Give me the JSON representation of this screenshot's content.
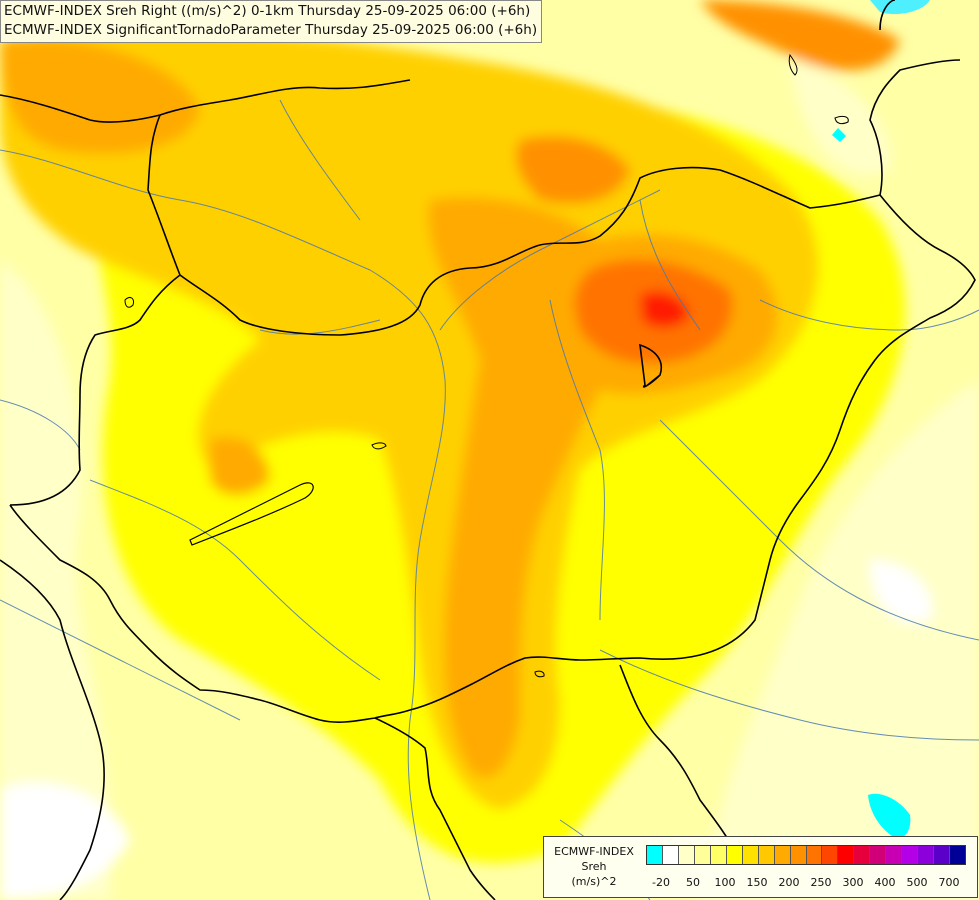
{
  "title_lines": [
    "ECMWF-INDEX Sreh Right ((m/s)^2) 0-1km Thursday 25-09-2025 06:00 (+6h)",
    "ECMWF-INDEX SignificantTornadoParameter Thursday 25-09-2025 06:00 (+6h)"
  ],
  "legend": {
    "title_lines": [
      "ECMWF-INDEX",
      "Sreh",
      "(m/s)^2"
    ],
    "colors": [
      "#00ffff",
      "#ffffff",
      "#ffffc8",
      "#ffff99",
      "#ffff66",
      "#ffff00",
      "#ffe100",
      "#ffc800",
      "#ffaa00",
      "#ff9100",
      "#ff7300",
      "#ff4600",
      "#ff0000",
      "#e6003c",
      "#d20078",
      "#c800b4",
      "#b400e6",
      "#8c00dc",
      "#5a00c8",
      "#000096"
    ],
    "tick_labels": [
      "-20",
      "50",
      "100",
      "150",
      "200",
      "250",
      "300",
      "400",
      "500",
      "700"
    ]
  },
  "map_layers": {
    "field": "Sreh Right 0-1km (m/s)^2",
    "overlay": "borders and rivers"
  }
}
